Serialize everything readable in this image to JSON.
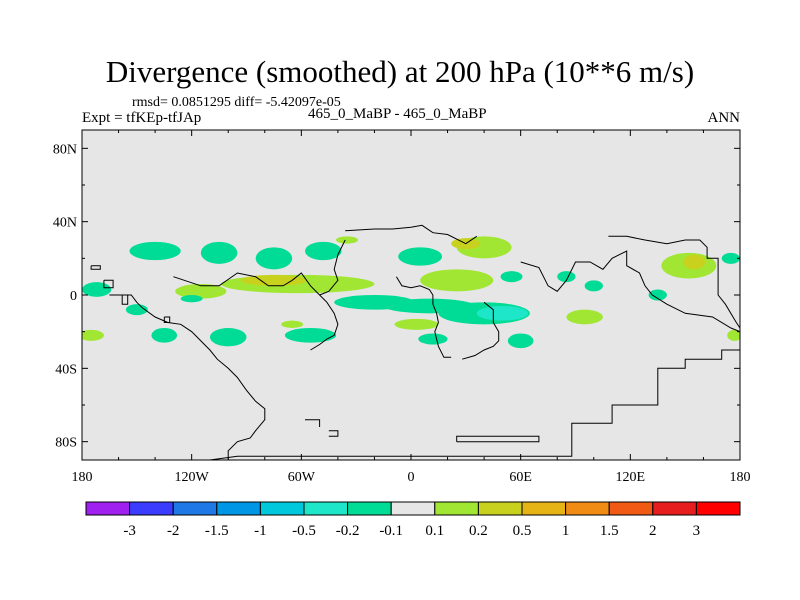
{
  "title": "Divergence (smoothed) at 200 hPa (10**6 m/s)",
  "stats_text": "rmsd= 0.0851295 diff= -5.42097e-05",
  "expt_text": "Expt = tfKEp-tfJAp",
  "case_text": "465_0_MaBP - 465_0_MaBP",
  "season": "ANN",
  "colors": {
    "background_fill": "#e6e6e6",
    "coastline": "#000000"
  },
  "chart_data": {
    "type": "heatmap",
    "projection": "cylindrical equidistant",
    "xlim": [
      -180,
      180
    ],
    "ylim": [
      -90,
      90
    ],
    "x_ticks": [
      {
        "value": -180,
        "label": "180"
      },
      {
        "value": -120,
        "label": "120W"
      },
      {
        "value": -60,
        "label": "60W"
      },
      {
        "value": 0,
        "label": "0"
      },
      {
        "value": 60,
        "label": "60E"
      },
      {
        "value": 120,
        "label": "120E"
      },
      {
        "value": 180,
        "label": "180"
      }
    ],
    "y_ticks": [
      {
        "value": 80,
        "label": "80N"
      },
      {
        "value": 40,
        "label": "40N"
      },
      {
        "value": 0,
        "label": "0"
      },
      {
        "value": -40,
        "label": "40S"
      },
      {
        "value": -80,
        "label": "80S"
      }
    ],
    "colorbar": {
      "boundaries": [
        "-3",
        "-2",
        "-1.5",
        "-1",
        "-0.5",
        "-0.2",
        "-0.1",
        "0.1",
        "0.2",
        "0.5",
        "1",
        "1.5",
        "2",
        "3"
      ],
      "colors": [
        "#a020f0",
        "#3c3cff",
        "#1e78e6",
        "#0096e6",
        "#00c8dc",
        "#1ee6c8",
        "#00dc96",
        "#e6e6e6",
        "#a0e632",
        "#c8d21e",
        "#e6b414",
        "#f08c14",
        "#f05a14",
        "#e61e1e",
        "#ff0000"
      ]
    },
    "regions": [
      {
        "lon": -140,
        "lat": 24,
        "rlon": 14,
        "rlat": 5,
        "value": -0.15
      },
      {
        "lon": -105,
        "lat": 23,
        "rlon": 10,
        "rlat": 6,
        "value": -0.15
      },
      {
        "lon": -75,
        "lat": 20,
        "rlon": 10,
        "rlat": 6,
        "value": -0.15
      },
      {
        "lon": -48,
        "lat": 24,
        "rlon": 10,
        "rlat": 5,
        "value": -0.15
      },
      {
        "lon": 5,
        "lat": 21,
        "rlon": 12,
        "rlat": 5,
        "value": -0.15
      },
      {
        "lon": -62,
        "lat": 6,
        "rlon": 42,
        "rlat": 5,
        "value": 0.15
      },
      {
        "lon": -75,
        "lat": 8,
        "rlon": 18,
        "rlat": 3,
        "value": 0.3
      },
      {
        "lon": -115,
        "lat": 2,
        "rlon": 14,
        "rlat": 4,
        "value": 0.15
      },
      {
        "lon": -120,
        "lat": -2,
        "rlon": 6,
        "rlat": 2,
        "value": -0.15
      },
      {
        "lon": -35,
        "lat": 30,
        "rlon": 6,
        "rlat": 2,
        "value": 0.15
      },
      {
        "lon": 40,
        "lat": 26,
        "rlon": 15,
        "rlat": 6,
        "value": 0.15
      },
      {
        "lon": 30,
        "lat": 28,
        "rlon": 8,
        "rlat": 3,
        "value": 0.3
      },
      {
        "lon": 25,
        "lat": 8,
        "rlon": 20,
        "rlat": 6,
        "value": 0.15
      },
      {
        "lon": 55,
        "lat": 10,
        "rlon": 6,
        "rlat": 3,
        "value": -0.15
      },
      {
        "lon": 85,
        "lat": 10,
        "rlon": 5,
        "rlat": 3,
        "value": -0.15
      },
      {
        "lon": 100,
        "lat": 5,
        "rlon": 5,
        "rlat": 3,
        "value": -0.15
      },
      {
        "lon": -20,
        "lat": -4,
        "rlon": 22,
        "rlat": 4,
        "value": -0.15
      },
      {
        "lon": 10,
        "lat": -6,
        "rlon": 25,
        "rlat": 4,
        "value": -0.15
      },
      {
        "lon": 40,
        "lat": -10,
        "rlon": 25,
        "rlat": 6,
        "value": -0.15
      },
      {
        "lon": 50,
        "lat": -10,
        "rlon": 14,
        "rlat": 4,
        "value": -0.3
      },
      {
        "lon": 95,
        "lat": -12,
        "rlon": 10,
        "rlat": 4,
        "value": 0.15
      },
      {
        "lon": 152,
        "lat": 16,
        "rlon": 15,
        "rlat": 7,
        "value": 0.15
      },
      {
        "lon": 155,
        "lat": 18,
        "rlon": 6,
        "rlat": 4,
        "value": 0.3
      },
      {
        "lon": 175,
        "lat": 20,
        "rlon": 5,
        "rlat": 3,
        "value": -0.15
      },
      {
        "lon": -172,
        "lat": 3,
        "rlon": 8,
        "rlat": 4,
        "value": -0.15
      },
      {
        "lon": -150,
        "lat": -8,
        "rlon": 6,
        "rlat": 3,
        "value": -0.15
      },
      {
        "lon": -175,
        "lat": -22,
        "rlon": 7,
        "rlat": 3,
        "value": 0.15
      },
      {
        "lon": -135,
        "lat": -22,
        "rlon": 7,
        "rlat": 4,
        "value": -0.15
      },
      {
        "lon": -100,
        "lat": -23,
        "rlon": 10,
        "rlat": 5,
        "value": -0.15
      },
      {
        "lon": -55,
        "lat": -22,
        "rlon": 14,
        "rlat": 4,
        "value": -0.15
      },
      {
        "lon": -65,
        "lat": -16,
        "rlon": 6,
        "rlat": 2,
        "value": 0.15
      },
      {
        "lon": 3,
        "lat": -16,
        "rlon": 12,
        "rlat": 3,
        "value": 0.15
      },
      {
        "lon": 12,
        "lat": -24,
        "rlon": 8,
        "rlat": 3,
        "value": -0.15
      },
      {
        "lon": 60,
        "lat": -25,
        "rlon": 7,
        "rlat": 4,
        "value": -0.15
      },
      {
        "lon": 135,
        "lat": 0,
        "rlon": 5,
        "rlat": 3,
        "value": -0.15
      },
      {
        "lon": 177,
        "lat": -22,
        "rlon": 4,
        "rlat": 3,
        "value": 0.15
      }
    ],
    "coastlines": [
      [
        [
          -165,
          0
        ],
        [
          -153,
          0
        ],
        [
          -150,
          -4
        ],
        [
          -147,
          -7
        ],
        [
          -140,
          -12
        ],
        [
          -133,
          -15
        ],
        [
          -126,
          -16
        ],
        [
          -120,
          -20
        ],
        [
          -116,
          -24
        ],
        [
          -110,
          -30
        ],
        [
          -106,
          -35
        ],
        [
          -100,
          -40
        ],
        [
          -95,
          -45
        ],
        [
          -90,
          -52
        ],
        [
          -85,
          -58
        ],
        [
          -80,
          -62
        ],
        [
          -80,
          -68
        ],
        [
          -85,
          -74
        ],
        [
          -88,
          -78
        ],
        [
          -95,
          -80
        ],
        [
          -100,
          -85
        ],
        [
          -100,
          -90
        ]
      ],
      [
        [
          -110,
          -90
        ],
        [
          -95,
          -88
        ],
        [
          -35,
          -88
        ],
        [
          35,
          -88
        ],
        [
          88,
          -88
        ],
        [
          88,
          -70
        ],
        [
          110,
          -70
        ],
        [
          110,
          -60
        ],
        [
          135,
          -60
        ],
        [
          135,
          -40
        ],
        [
          150,
          -40
        ],
        [
          150,
          -35
        ],
        [
          170,
          -35
        ],
        [
          170,
          -30
        ],
        [
          180,
          -30
        ]
      ],
      [
        [
          -65,
          8
        ],
        [
          -60,
          12
        ],
        [
          -55,
          5
        ],
        [
          -50,
          0
        ],
        [
          -46,
          -4
        ],
        [
          -42,
          -10
        ],
        [
          -40,
          -16
        ],
        [
          -42,
          -22
        ],
        [
          -46,
          -24
        ],
        [
          -50,
          -27
        ],
        [
          -55,
          -30
        ]
      ],
      [
        [
          -36,
          35
        ],
        [
          -20,
          36
        ],
        [
          -10,
          36
        ],
        [
          0,
          37
        ],
        [
          6,
          38
        ],
        [
          12,
          34
        ],
        [
          20,
          33
        ],
        [
          30,
          28
        ],
        [
          36,
          32
        ]
      ],
      [
        [
          -8,
          10
        ],
        [
          -5,
          5
        ],
        [
          0,
          4
        ],
        [
          5,
          5
        ],
        [
          10,
          3
        ],
        [
          12,
          0
        ],
        [
          12,
          -5
        ],
        [
          14,
          -10
        ],
        [
          15,
          -15
        ],
        [
          13,
          -20
        ],
        [
          15,
          -28
        ],
        [
          18,
          -34
        ],
        [
          22,
          -34
        ]
      ],
      [
        [
          40,
          -4
        ],
        [
          45,
          -8
        ],
        [
          45,
          -15
        ],
        [
          48,
          -20
        ],
        [
          48,
          -25
        ],
        [
          45,
          -28
        ],
        [
          40,
          -30
        ],
        [
          35,
          -33
        ],
        [
          28,
          -35
        ]
      ],
      [
        [
          25,
          -80
        ],
        [
          70,
          -80
        ],
        [
          70,
          -77
        ],
        [
          25,
          -77
        ],
        [
          25,
          -80
        ]
      ],
      [
        [
          -45,
          -74
        ],
        [
          -40,
          -74
        ],
        [
          -40,
          -77
        ],
        [
          -45,
          -77
        ]
      ],
      [
        [
          -58,
          -68
        ],
        [
          -50,
          -68
        ],
        [
          -50,
          -72
        ]
      ],
      [
        [
          -168,
          8
        ],
        [
          -163,
          8
        ],
        [
          -163,
          4
        ],
        [
          -168,
          4
        ],
        [
          -168,
          8
        ]
      ],
      [
        [
          -158,
          0
        ],
        [
          -155,
          0
        ],
        [
          -155,
          -5
        ],
        [
          -158,
          -5
        ],
        [
          -158,
          0
        ]
      ],
      [
        [
          -135,
          -12
        ],
        [
          -132,
          -12
        ],
        [
          -132,
          -15
        ],
        [
          -135,
          -15
        ],
        [
          -135,
          -12
        ]
      ],
      [
        [
          -175,
          16
        ],
        [
          -170,
          16
        ],
        [
          -170,
          14
        ],
        [
          -175,
          14
        ],
        [
          -175,
          16
        ]
      ],
      [
        [
          108,
          32
        ],
        [
          118,
          32
        ],
        [
          128,
          30
        ],
        [
          140,
          28
        ],
        [
          150,
          30
        ],
        [
          158,
          30
        ],
        [
          162,
          26
        ],
        [
          162,
          20
        ],
        [
          168,
          20
        ],
        [
          168,
          0
        ],
        [
          172,
          -5
        ],
        [
          178,
          -15
        ],
        [
          180,
          -18
        ]
      ],
      [
        [
          60,
          18
        ],
        [
          70,
          15
        ],
        [
          75,
          5
        ],
        [
          80,
          2
        ],
        [
          85,
          8
        ],
        [
          90,
          18
        ],
        [
          98,
          18
        ],
        [
          105,
          14
        ],
        [
          110,
          20
        ],
        [
          118,
          24
        ],
        [
          118,
          16
        ],
        [
          125,
          12
        ],
        [
          128,
          5
        ],
        [
          132,
          0
        ],
        [
          140,
          -5
        ],
        [
          150,
          -10
        ],
        [
          165,
          -12
        ],
        [
          175,
          -18
        ],
        [
          180,
          -20
        ]
      ],
      [
        [
          -130,
          10
        ],
        [
          -115,
          5
        ],
        [
          -105,
          5
        ],
        [
          -95,
          12
        ],
        [
          -85,
          10
        ],
        [
          -78,
          5
        ],
        [
          -70,
          5
        ],
        [
          -65,
          8
        ]
      ],
      [
        [
          -36,
          30
        ],
        [
          -40,
          22
        ],
        [
          -42,
          14
        ],
        [
          -40,
          8
        ],
        [
          -45,
          2
        ],
        [
          -50,
          0
        ]
      ]
    ]
  }
}
